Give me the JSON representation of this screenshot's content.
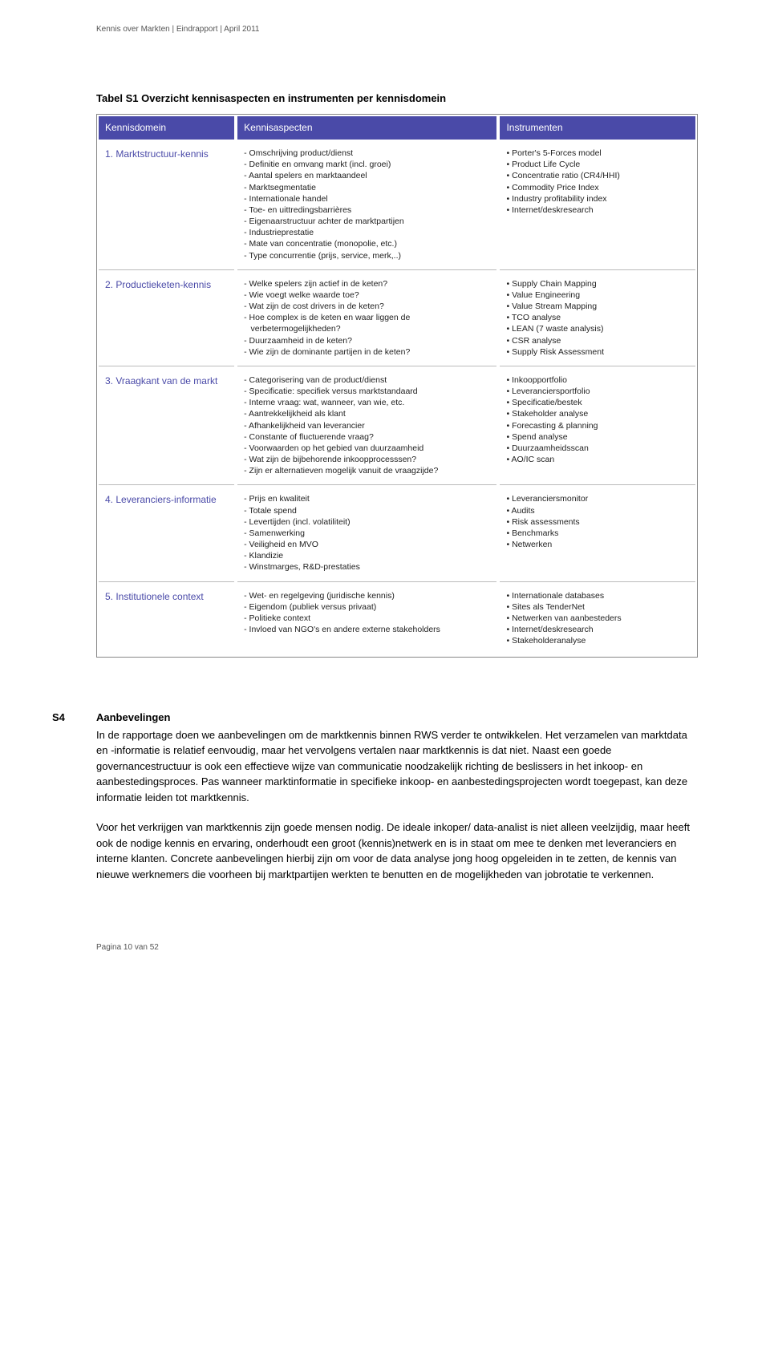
{
  "header": "Kennis over Markten | Eindrapport | April 2011",
  "tableTitle": "Tabel S1 Overzicht kennisaspecten en instrumenten per kennisdomein",
  "columns": [
    "Kennisdomein",
    "Kennisaspecten",
    "Instrumenten"
  ],
  "rows": [
    {
      "domain": "1. Marktstructuur-kennis",
      "aspects": [
        "Omschrijving product/dienst",
        "Definitie en omvang markt (incl. groei)",
        "Aantal spelers en marktaandeel",
        "Marktsegmentatie",
        "Internationale handel",
        "Toe- en uittredingsbarrières",
        "Eigenaarstructuur achter de marktpartijen",
        "Industrieprestatie",
        "Mate van concentratie (monopolie, etc.)",
        "Type concurrentie (prijs, service, merk,..)"
      ],
      "instruments": [
        "Porter's 5-Forces model",
        "Product Life Cycle",
        "Concentratie ratio (CR4/HHI)",
        "Commodity Price Index",
        "Industry profitability index",
        "Internet/deskresearch"
      ]
    },
    {
      "domain": "2. Productieketen-kennis",
      "aspects": [
        "Welke spelers zijn actief in de keten?",
        "Wie voegt welke waarde toe?",
        "Wat zijn de cost drivers in de keten?",
        "Hoe complex is de keten en waar liggen de verbetermogelijkheden?",
        "Duurzaamheid in de keten?",
        "Wie zijn de dominante partijen in de keten?"
      ],
      "instruments": [
        "Supply Chain Mapping",
        "Value Engineering",
        "Value Stream Mapping",
        "TCO analyse",
        "LEAN (7 waste analysis)",
        "CSR analyse",
        "Supply Risk Assessment"
      ]
    },
    {
      "domain": "3. Vraagkant van de markt",
      "aspects": [
        "Categorisering van de product/dienst",
        "Specificatie: specifiek versus marktstandaard",
        "Interne vraag: wat, wanneer, van wie, etc.",
        "Aantrekkelijkheid als klant",
        "Afhankelijkheid van leverancier",
        "Constante of fluctuerende vraag?",
        "Voorwaarden op het gebied van duurzaamheid",
        "Wat zijn de bijbehorende inkoopprocesssen?",
        "Zijn er alternatieven mogelijk vanuit de vraagzijde?"
      ],
      "instruments": [
        "Inkoopportfolio",
        "Leveranciersportfolio",
        "Specificatie/bestek",
        "Stakeholder analyse",
        "Forecasting & planning",
        "Spend analyse",
        "Duurzaamheidsscan",
        "AO/IC scan"
      ]
    },
    {
      "domain": "4. Leveranciers-informatie",
      "aspects": [
        "Prijs en kwaliteit",
        "Totale spend",
        "Levertijden (incl. volatiliteit)",
        "Samenwerking",
        "Veiligheid en MVO",
        "Klandizie",
        "Winstmarges, R&D-prestaties"
      ],
      "instruments": [
        "Leveranciersmonitor",
        "Audits",
        "Risk assessments",
        "Benchmarks",
        "Netwerken"
      ]
    },
    {
      "domain": "5. Institutionele context",
      "aspects": [
        "Wet- en regelgeving (juridische kennis)",
        "Eigendom (publiek versus privaat)",
        "Politieke context",
        "Invloed van NGO's en andere externe stakeholders"
      ],
      "instruments": [
        "Internationale databases",
        "Sites als TenderNet",
        "Netwerken van aanbesteders",
        "Internet/deskresearch",
        "Stakeholderanalyse"
      ]
    }
  ],
  "section": {
    "label": "S4",
    "title": "Aanbevelingen",
    "p1": "In de rapportage doen we aanbevelingen om de marktkennis binnen RWS verder te ontwikkelen. Het verzamelen van marktdata en -informatie is relatief eenvoudig, maar het vervolgens vertalen naar marktkennis is dat niet. Naast een goede governancestructuur is ook een effectieve wijze van communicatie noodzakelijk richting de beslissers in het inkoop- en aanbestedingsproces. Pas wanneer marktinformatie in specifieke inkoop- en aanbestedingsprojecten wordt toegepast, kan deze informatie leiden tot marktkennis.",
    "p2": "Voor het verkrijgen van marktkennis zijn goede mensen nodig. De ideale inkoper/ data-analist is niet alleen veelzijdig, maar heeft ook de nodige kennis en ervaring, onderhoudt een groot (kennis)netwerk en is in staat om mee te denken met leveranciers en interne klanten. Concrete aanbevelingen hierbij zijn om voor de data analyse jong hoog opgeleiden in te zetten, de kennis van nieuwe werknemers die voorheen bij marktpartijen werkten te benutten en de mogelijkheden van jobrotatie te verkennen."
  },
  "footer": "Pagina 10 van 52",
  "colors": {
    "headerBg": "#4a4aa8",
    "headerText": "#ffffff",
    "domainText": "#4a4aa8",
    "bodyText": "#222222",
    "border": "#888888",
    "rowSep": "#bbbbbb"
  }
}
